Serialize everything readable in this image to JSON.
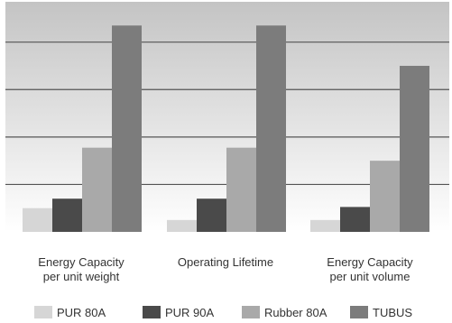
{
  "chart_data": {
    "type": "bar",
    "categories": [
      [
        "Energy Capacity",
        "per unit weight"
      ],
      [
        "Operating Lifetime"
      ],
      [
        "Energy Capacity",
        "per unit volume"
      ]
    ],
    "series": [
      {
        "name": "PUR 80A",
        "color": "#d6d6d6",
        "values": [
          1.0,
          0.5,
          0.5
        ]
      },
      {
        "name": "PUR 90A",
        "color": "#4a4a4a",
        "values": [
          1.4,
          1.4,
          1.05
        ]
      },
      {
        "name": "Rubber 80A",
        "color": "#a9a9a9",
        "values": [
          3.55,
          3.55,
          3.0
        ]
      },
      {
        "name": "TUBUS",
        "color": "#7c7c7c",
        "values": [
          8.7,
          8.7,
          7.0
        ]
      }
    ],
    "ylim": [
      0,
      9.7
    ],
    "gridlines": [
      2,
      4,
      6,
      8
    ],
    "grid": true,
    "legend": "bottom",
    "title": "",
    "xlabel": "",
    "ylabel": ""
  }
}
